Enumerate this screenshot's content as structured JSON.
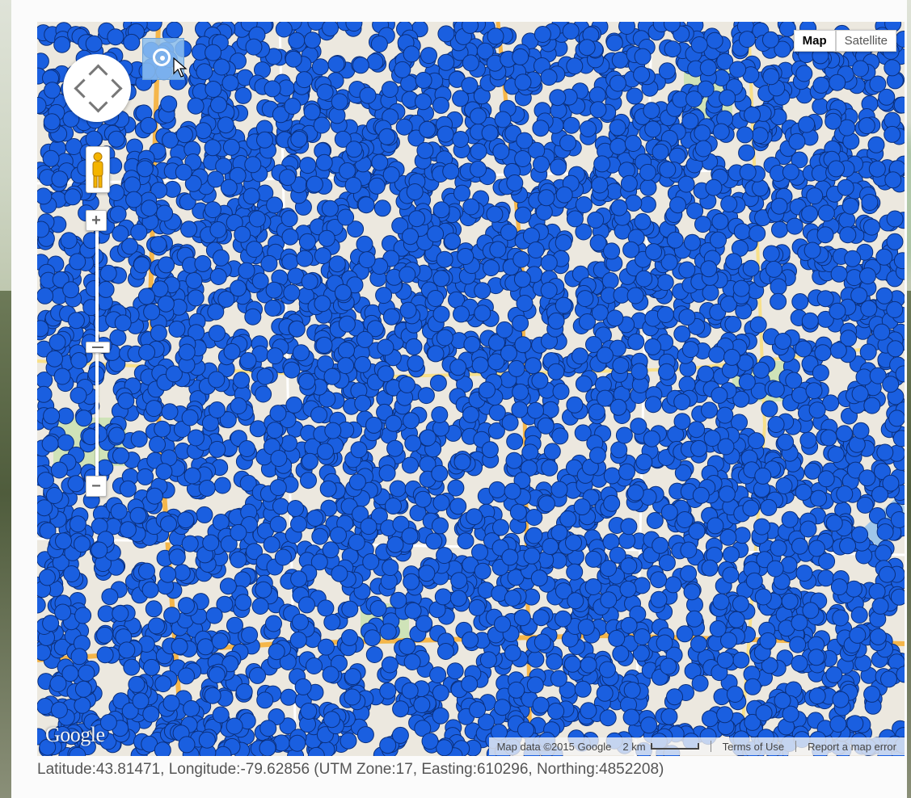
{
  "map": {
    "type_buttons": [
      "Map",
      "Satellite"
    ],
    "active_type": "Map",
    "attribution": "Map data ©2015 Google",
    "scale_label": "2 km",
    "terms_link": "Terms of Use",
    "report_link": "Report a map error",
    "logo_text": "Google",
    "zoom_in_label": "+",
    "zoom_out_label": "−",
    "marker_color": "#1a5fe0",
    "marker_outline": "#0b2f7a"
  },
  "status": {
    "coordinates": "Latitude:43.81471, Longitude:-79.62856 (UTM Zone:17, Easting:610296, Northing:4852208)"
  }
}
